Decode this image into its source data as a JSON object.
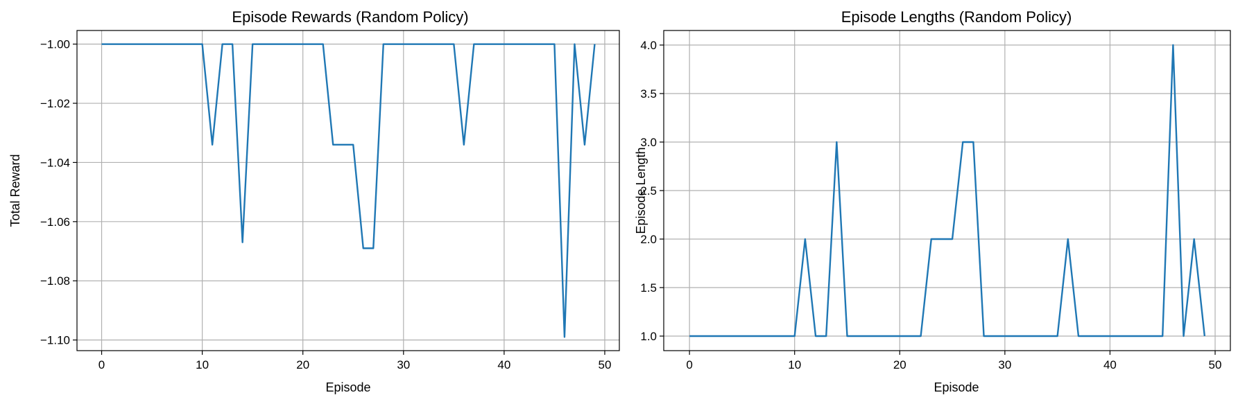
{
  "chart_data": [
    {
      "type": "line",
      "title": "Episode Rewards (Random Policy)",
      "xlabel": "Episode",
      "ylabel": "Total Reward",
      "xlim": [
        -2.45,
        51.45
      ],
      "ylim": [
        -1.1036,
        -0.9954
      ],
      "xticks": [
        0,
        10,
        20,
        30,
        40,
        50
      ],
      "xtick_labels": [
        "0",
        "10",
        "20",
        "30",
        "40",
        "50"
      ],
      "yticks": [
        -1.0,
        -1.02,
        -1.04,
        -1.06,
        -1.08,
        -1.1
      ],
      "ytick_labels": [
        "−1.00",
        "−1.02",
        "−1.04",
        "−1.06",
        "−1.08",
        "−1.10"
      ],
      "grid": true,
      "color": "#1f77b4",
      "series": [
        {
          "x": [
            0,
            1,
            2,
            3,
            4,
            5,
            6,
            7,
            8,
            9,
            10,
            11,
            12,
            13,
            14,
            15,
            16,
            17,
            18,
            19,
            20,
            21,
            22,
            23,
            24,
            25,
            26,
            27,
            28,
            29,
            30,
            31,
            32,
            33,
            34,
            35,
            36,
            37,
            38,
            39,
            40,
            41,
            42,
            43,
            44,
            45,
            46,
            47,
            48,
            49
          ],
          "values": [
            -1.0,
            -1.0,
            -1.0,
            -1.0,
            -1.0,
            -1.0,
            -1.0,
            -1.0,
            -1.0,
            -1.0,
            -1.0,
            -1.034,
            -1.0,
            -1.0,
            -1.067,
            -1.0,
            -1.0,
            -1.0,
            -1.0,
            -1.0,
            -1.0,
            -1.0,
            -1.0,
            -1.034,
            -1.034,
            -1.034,
            -1.069,
            -1.069,
            -1.0,
            -1.0,
            -1.0,
            -1.0,
            -1.0,
            -1.0,
            -1.0,
            -1.0,
            -1.034,
            -1.0,
            -1.0,
            -1.0,
            -1.0,
            -1.0,
            -1.0,
            -1.0,
            -1.0,
            -1.0,
            -1.099,
            -1.0,
            -1.034,
            -1.0
          ]
        }
      ]
    },
    {
      "type": "line",
      "title": "Episode Lengths (Random Policy)",
      "xlabel": "Episode",
      "ylabel": "Episode Length",
      "xlim": [
        -2.45,
        51.45
      ],
      "ylim": [
        0.85,
        4.15
      ],
      "xticks": [
        0,
        10,
        20,
        30,
        40,
        50
      ],
      "xtick_labels": [
        "0",
        "10",
        "20",
        "30",
        "40",
        "50"
      ],
      "yticks": [
        1.0,
        1.5,
        2.0,
        2.5,
        3.0,
        3.5,
        4.0
      ],
      "ytick_labels": [
        "1.0",
        "1.5",
        "2.0",
        "2.5",
        "3.0",
        "3.5",
        "4.0"
      ],
      "grid": true,
      "color": "#1f77b4",
      "series": [
        {
          "x": [
            0,
            1,
            2,
            3,
            4,
            5,
            6,
            7,
            8,
            9,
            10,
            11,
            12,
            13,
            14,
            15,
            16,
            17,
            18,
            19,
            20,
            21,
            22,
            23,
            24,
            25,
            26,
            27,
            28,
            29,
            30,
            31,
            32,
            33,
            34,
            35,
            36,
            37,
            38,
            39,
            40,
            41,
            42,
            43,
            44,
            45,
            46,
            47,
            48,
            49
          ],
          "values": [
            1,
            1,
            1,
            1,
            1,
            1,
            1,
            1,
            1,
            1,
            1,
            2,
            1,
            1,
            3,
            1,
            1,
            1,
            1,
            1,
            1,
            1,
            1,
            2,
            2,
            2,
            3,
            3,
            1,
            1,
            1,
            1,
            1,
            1,
            1,
            1,
            2,
            1,
            1,
            1,
            1,
            1,
            1,
            1,
            1,
            1,
            4,
            1,
            2,
            1
          ]
        }
      ]
    }
  ]
}
